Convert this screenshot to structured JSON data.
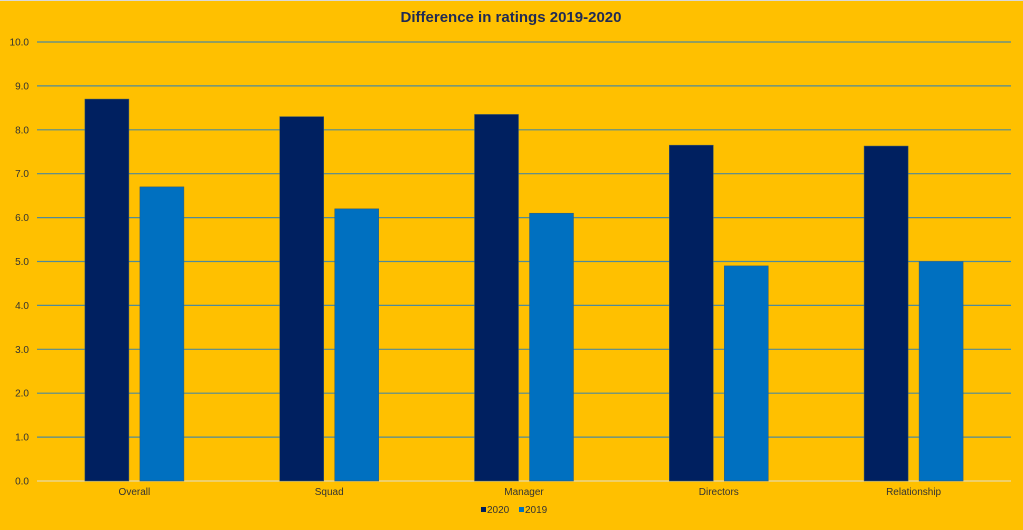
{
  "chart_data": {
    "type": "bar",
    "title": "Difference in ratings 2019-2020",
    "xlabel": "",
    "ylabel": "",
    "categories": [
      "Overall",
      "Squad",
      "Manager",
      "Directors",
      "Relationship"
    ],
    "series": [
      {
        "name": "2020",
        "color": "#002060",
        "values": [
          8.7,
          8.3,
          8.35,
          7.65,
          7.63
        ]
      },
      {
        "name": "2019",
        "color": "#0070C0",
        "values": [
          6.7,
          6.2,
          6.1,
          4.9,
          5.0
        ]
      }
    ],
    "ylim": [
      0,
      10
    ],
    "yticks": [
      "0.0",
      "1.0",
      "2.0",
      "3.0",
      "4.0",
      "5.0",
      "6.0",
      "7.0",
      "8.0",
      "9.0",
      "10.0"
    ],
    "grid": true,
    "legend_position": "bottom",
    "colors": {
      "background": "#FFC000",
      "gridline": "#4F8A9A",
      "axis": "#E8D9A8",
      "title": "#1F2A55"
    }
  }
}
